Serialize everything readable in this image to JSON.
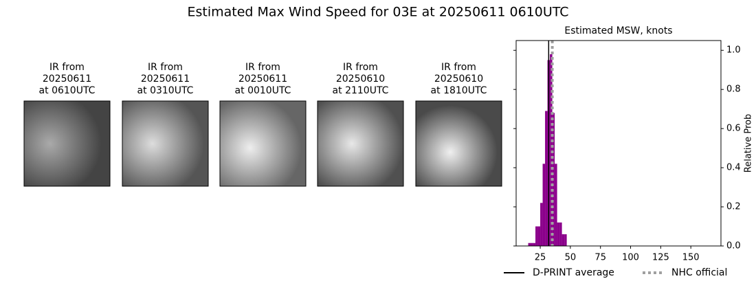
{
  "title": "Estimated Max Wind Speed for 03E at 20250611 0610UTC",
  "panels": [
    {
      "lines": [
        "IR from",
        "20250611",
        "at 0610UTC"
      ]
    },
    {
      "lines": [
        "IR from",
        "20250611",
        "at 0310UTC"
      ]
    },
    {
      "lines": [
        "IR from",
        "20250611",
        "at 0010UTC"
      ]
    },
    {
      "lines": [
        "IR from",
        "20250610",
        "at 2110UTC"
      ]
    },
    {
      "lines": [
        "IR from",
        "20250610",
        "at 1810UTC"
      ]
    }
  ],
  "chart_data": {
    "type": "histogram",
    "title": "Estimated MSW, knots",
    "y_label": "Relative Prob",
    "bins": [
      15,
      17,
      19,
      21,
      23,
      25,
      27,
      29,
      31,
      33,
      35,
      37,
      39,
      41,
      43,
      45,
      47
    ],
    "values": [
      0.015,
      0.015,
      0.015,
      0.1,
      0.1,
      0.22,
      0.42,
      0.69,
      0.95,
      0.98,
      0.68,
      0.42,
      0.12,
      0.12,
      0.06,
      0.06
    ],
    "color": "#8b008b",
    "xlim": [
      5,
      175
    ],
    "xticks": [
      25,
      50,
      75,
      100,
      125,
      150
    ],
    "ylim": [
      0,
      1.05
    ],
    "yticks": [
      {
        "value": 0,
        "label": "0.0"
      },
      {
        "value": 0.2,
        "label": "0.2"
      },
      {
        "value": 0.4,
        "label": "0.4"
      },
      {
        "value": 0.6,
        "label": "0.6"
      },
      {
        "value": 0.8,
        "label": "0.8"
      },
      {
        "value": 1,
        "label": "1.0"
      }
    ],
    "lines": [
      {
        "name": "D-PRINT average",
        "color": "#000000",
        "style": "solid",
        "value": 32
      },
      {
        "name": "NHC official",
        "color": "#a0a0a0",
        "style": "dotted",
        "value": 35
      }
    ]
  }
}
